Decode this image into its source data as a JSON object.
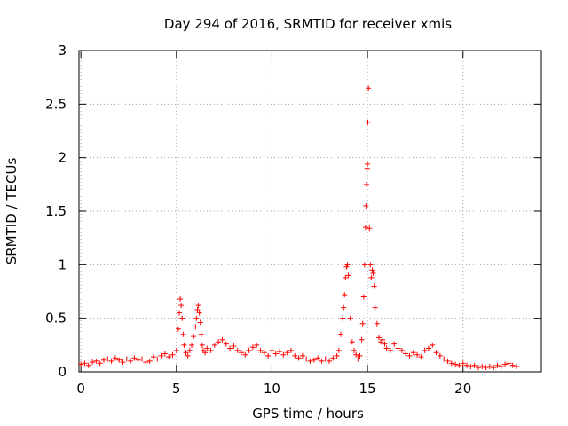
{
  "chart_data": {
    "type": "scatter",
    "title": "Day 294 of 2016, SRMTID for receiver xmis",
    "xlabel": "GPS time / hours",
    "ylabel": "SRMTID / TECUs",
    "xlim": [
      -0.1,
      24.1
    ],
    "ylim": [
      0,
      3
    ],
    "xticks": [
      0,
      5,
      10,
      15,
      20
    ],
    "xtick_labels": [
      "0",
      "5",
      "10",
      "15",
      "20"
    ],
    "yticks": [
      0,
      0.5,
      1,
      1.5,
      2,
      2.5,
      3
    ],
    "ytick_labels": [
      "0",
      "0.5",
      "1",
      "1.5",
      "2",
      "2.5",
      "3"
    ],
    "grid": true,
    "marker": "+",
    "color": "#ff0000",
    "series": [
      {
        "name": "SRMTID",
        "x": [
          0.0,
          0.2,
          0.4,
          0.6,
          0.8,
          1.0,
          1.2,
          1.4,
          1.6,
          1.8,
          2.0,
          2.2,
          2.4,
          2.6,
          2.8,
          3.0,
          3.2,
          3.4,
          3.6,
          3.8,
          4.0,
          4.2,
          4.4,
          4.6,
          4.8,
          5.0,
          5.1,
          5.15,
          5.2,
          5.25,
          5.3,
          5.35,
          5.4,
          5.5,
          5.6,
          5.7,
          5.8,
          5.9,
          6.0,
          6.05,
          6.1,
          6.15,
          6.2,
          6.25,
          6.3,
          6.35,
          6.4,
          6.5,
          6.6,
          6.8,
          7.0,
          7.2,
          7.4,
          7.6,
          7.8,
          8.0,
          8.2,
          8.4,
          8.6,
          8.8,
          9.0,
          9.2,
          9.4,
          9.6,
          9.8,
          10.0,
          10.2,
          10.4,
          10.6,
          10.8,
          11.0,
          11.2,
          11.4,
          11.6,
          11.8,
          12.0,
          12.2,
          12.4,
          12.6,
          12.8,
          13.0,
          13.2,
          13.4,
          13.5,
          13.6,
          13.7,
          13.75,
          13.8,
          13.85,
          13.9,
          13.95,
          14.0,
          14.1,
          14.2,
          14.3,
          14.4,
          14.5,
          14.6,
          14.7,
          14.75,
          14.8,
          14.85,
          14.9,
          14.92,
          14.95,
          14.98,
          15.0,
          15.02,
          15.05,
          15.1,
          15.15,
          15.2,
          15.25,
          15.3,
          15.35,
          15.4,
          15.5,
          15.6,
          15.7,
          15.8,
          15.9,
          16.0,
          16.2,
          16.4,
          16.6,
          16.8,
          17.0,
          17.2,
          17.4,
          17.6,
          17.8,
          18.0,
          18.2,
          18.4,
          18.6,
          18.8,
          19.0,
          19.2,
          19.4,
          19.6,
          19.8,
          20.0,
          20.2,
          20.4,
          20.6,
          20.8,
          21.0,
          21.2,
          21.4,
          21.6,
          21.8,
          22.0,
          22.2,
          22.4,
          22.6,
          22.8
        ],
        "y": [
          0.07,
          0.08,
          0.06,
          0.09,
          0.1,
          0.08,
          0.11,
          0.12,
          0.1,
          0.13,
          0.11,
          0.09,
          0.12,
          0.1,
          0.13,
          0.11,
          0.12,
          0.09,
          0.1,
          0.14,
          0.12,
          0.15,
          0.17,
          0.14,
          0.16,
          0.2,
          0.4,
          0.55,
          0.68,
          0.62,
          0.5,
          0.35,
          0.25,
          0.18,
          0.15,
          0.2,
          0.25,
          0.33,
          0.42,
          0.5,
          0.58,
          0.62,
          0.55,
          0.46,
          0.35,
          0.25,
          0.2,
          0.18,
          0.22,
          0.2,
          0.25,
          0.28,
          0.3,
          0.26,
          0.22,
          0.24,
          0.2,
          0.18,
          0.16,
          0.2,
          0.23,
          0.25,
          0.2,
          0.18,
          0.15,
          0.2,
          0.17,
          0.19,
          0.16,
          0.18,
          0.2,
          0.15,
          0.13,
          0.15,
          0.12,
          0.1,
          0.11,
          0.13,
          0.1,
          0.12,
          0.1,
          0.13,
          0.15,
          0.2,
          0.35,
          0.5,
          0.6,
          0.72,
          0.88,
          0.98,
          1.0,
          0.9,
          0.5,
          0.28,
          0.2,
          0.16,
          0.12,
          0.15,
          0.3,
          0.45,
          0.7,
          1.0,
          1.35,
          1.55,
          1.75,
          1.9,
          1.94,
          2.33,
          2.65,
          1.34,
          1.0,
          0.88,
          0.95,
          0.92,
          0.8,
          0.6,
          0.45,
          0.32,
          0.28,
          0.3,
          0.26,
          0.22,
          0.2,
          0.26,
          0.22,
          0.2,
          0.17,
          0.15,
          0.18,
          0.16,
          0.14,
          0.2,
          0.22,
          0.25,
          0.18,
          0.15,
          0.12,
          0.1,
          0.08,
          0.07,
          0.06,
          0.08,
          0.06,
          0.05,
          0.06,
          0.04,
          0.05,
          0.04,
          0.05,
          0.04,
          0.06,
          0.05,
          0.07,
          0.08,
          0.06,
          0.05
        ]
      }
    ]
  }
}
